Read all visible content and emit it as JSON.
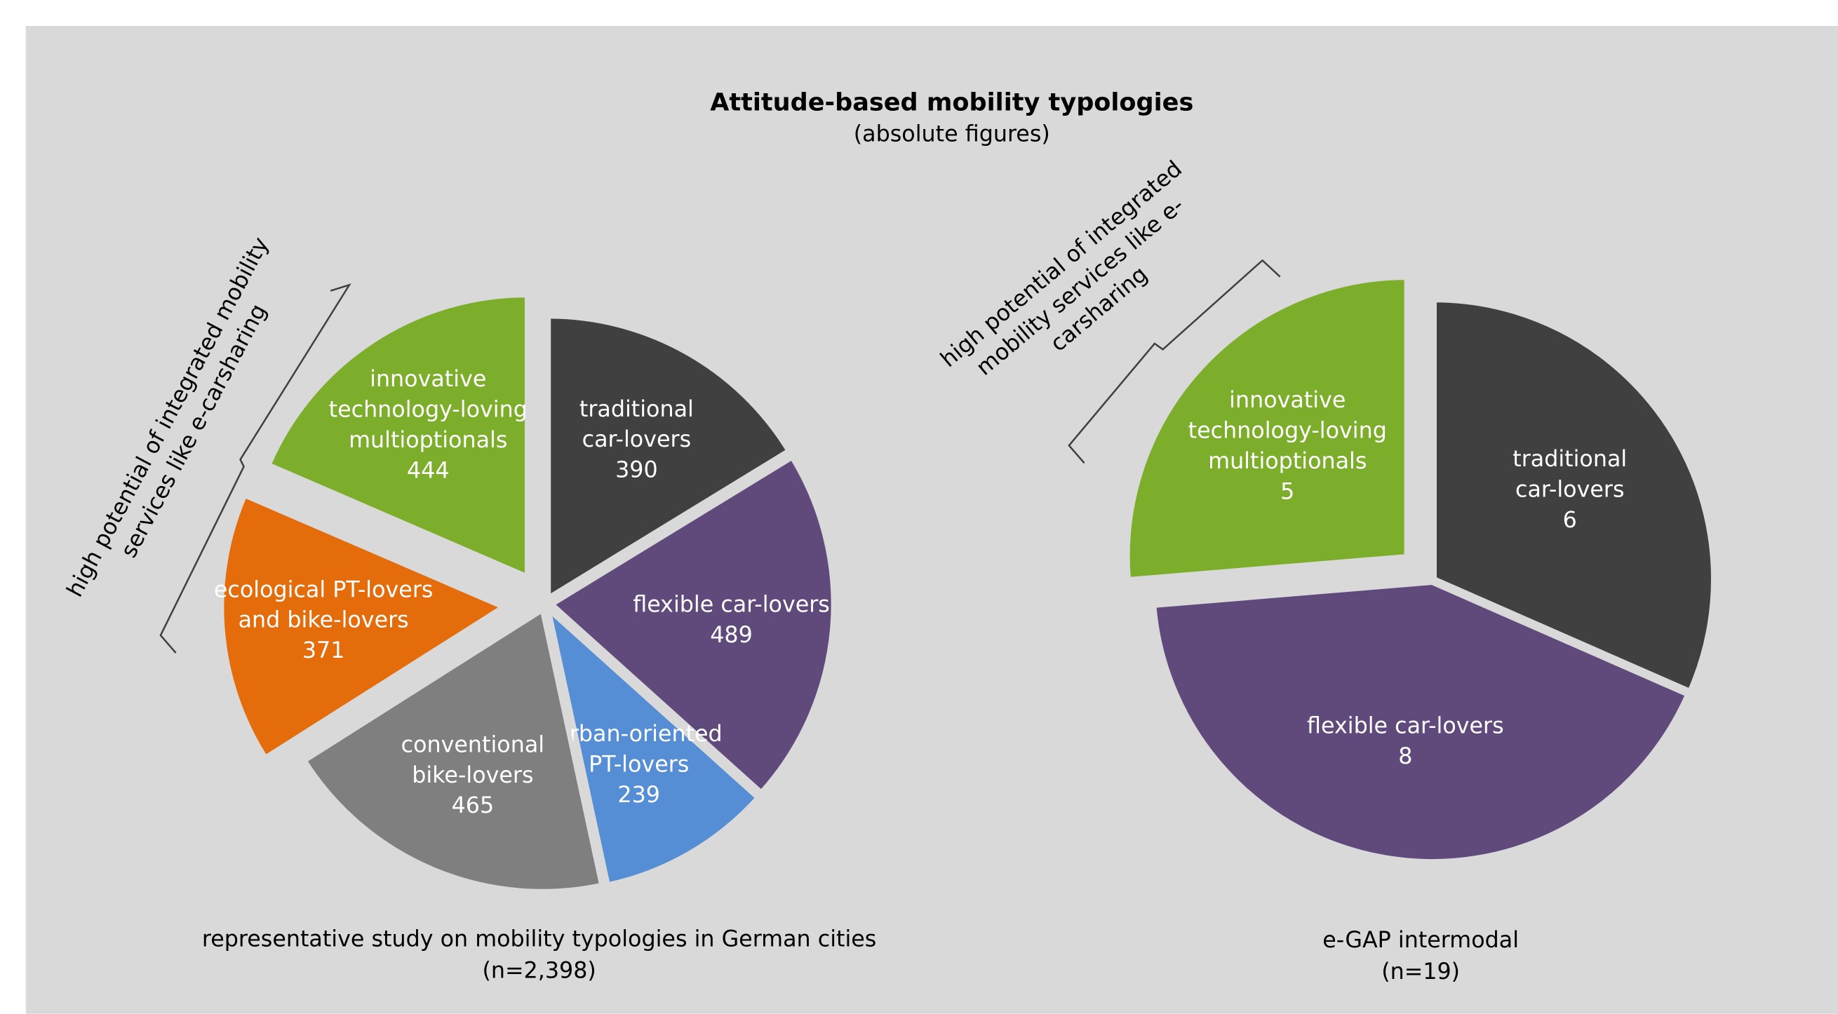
{
  "title": "Attitude-based mobility typologies",
  "subtitle": "(absolute figures)",
  "chart_data": [
    {
      "type": "pie",
      "title": "representative study on mobility typologies in German cities",
      "subtitle": "(n=2,398)",
      "annotation": [
        "high potential of integrated mobility",
        "services like e-carsharing"
      ],
      "categories": [
        [
          "traditional",
          "car-lovers"
        ],
        [
          "flexible car-lovers"
        ],
        [
          "urban-oriented",
          "PT-lovers"
        ],
        [
          "conventional",
          "bike-lovers"
        ],
        [
          "ecological PT-lovers",
          "and bike-lovers"
        ],
        [
          "innovative",
          "technology-loving",
          "multioptionals"
        ]
      ],
      "values": [
        390,
        489,
        239,
        465,
        371,
        444
      ],
      "colors": [
        "#404040",
        "#604a7b",
        "#558ed5",
        "#7f7f7f",
        "#e46c0a",
        "#7dae2b"
      ]
    },
    {
      "type": "pie",
      "title": "e-GAP intermodal",
      "subtitle": "(n=19)",
      "annotation": [
        "high potential of integrated",
        "mobility services like e-",
        "carsharing"
      ],
      "categories": [
        [
          "traditional",
          "car-lovers"
        ],
        [
          "flexible car-lovers"
        ],
        [
          "innovative",
          "technology-loving",
          "multioptionals"
        ]
      ],
      "values": [
        6,
        8,
        5
      ],
      "colors": [
        "#404040",
        "#604a7b",
        "#7dae2b"
      ]
    }
  ]
}
